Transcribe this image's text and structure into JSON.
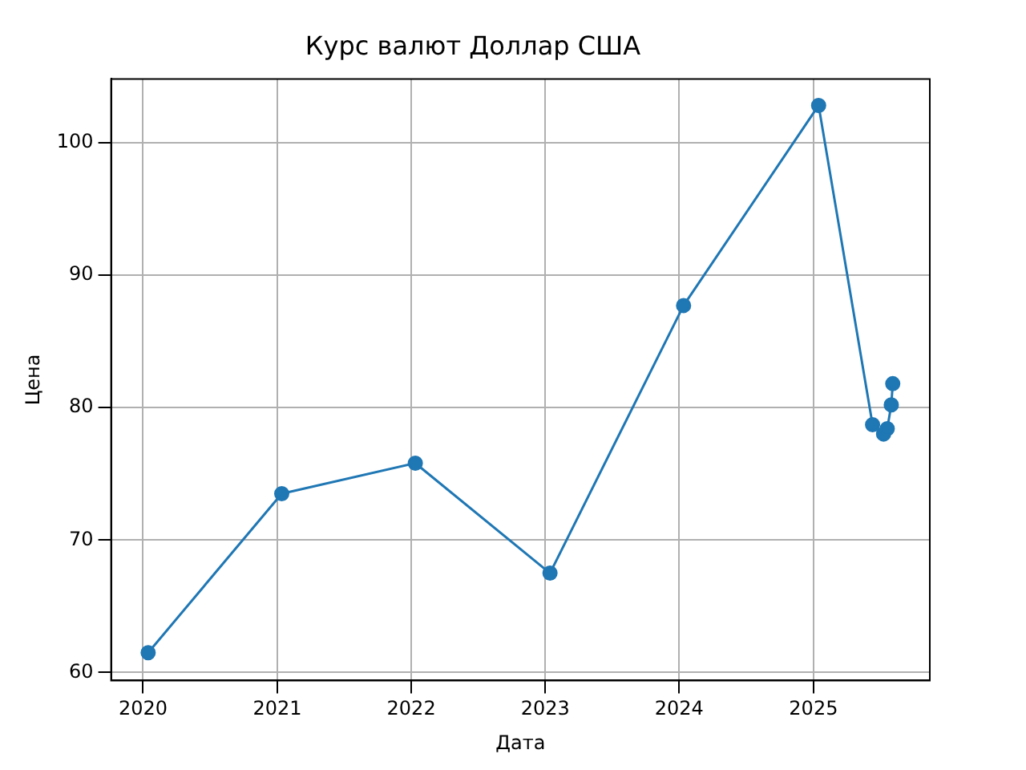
{
  "chart_data": {
    "type": "line",
    "title": "Курс валют Доллар США",
    "xlabel": "Дата",
    "ylabel": "Цена",
    "x": [
      "2020-01-15",
      "2021-01-13",
      "2022-01-12",
      "2023-01-14",
      "2024-01-13",
      "2025-01-15",
      "2025-06-11",
      "2025-07-11",
      "2025-07-21",
      "2025-08-01",
      "2025-08-05"
    ],
    "series": [
      {
        "color": "#1f77b4",
        "values": [
          61.5,
          73.5,
          75.8,
          67.5,
          87.7,
          102.8,
          78.7,
          78.0,
          78.4,
          80.2,
          81.8
        ]
      }
    ],
    "xlim": [
      "2019-10-06",
      "2025-11-14"
    ],
    "ylim": [
      59.4,
      104.8
    ],
    "xticks": [
      "2020",
      "2021",
      "2022",
      "2023",
      "2024",
      "2025"
    ],
    "yticks": [
      60,
      70,
      80,
      90,
      100
    ],
    "grid": true,
    "legend": false,
    "marker": "circle",
    "line_style": "solid"
  }
}
